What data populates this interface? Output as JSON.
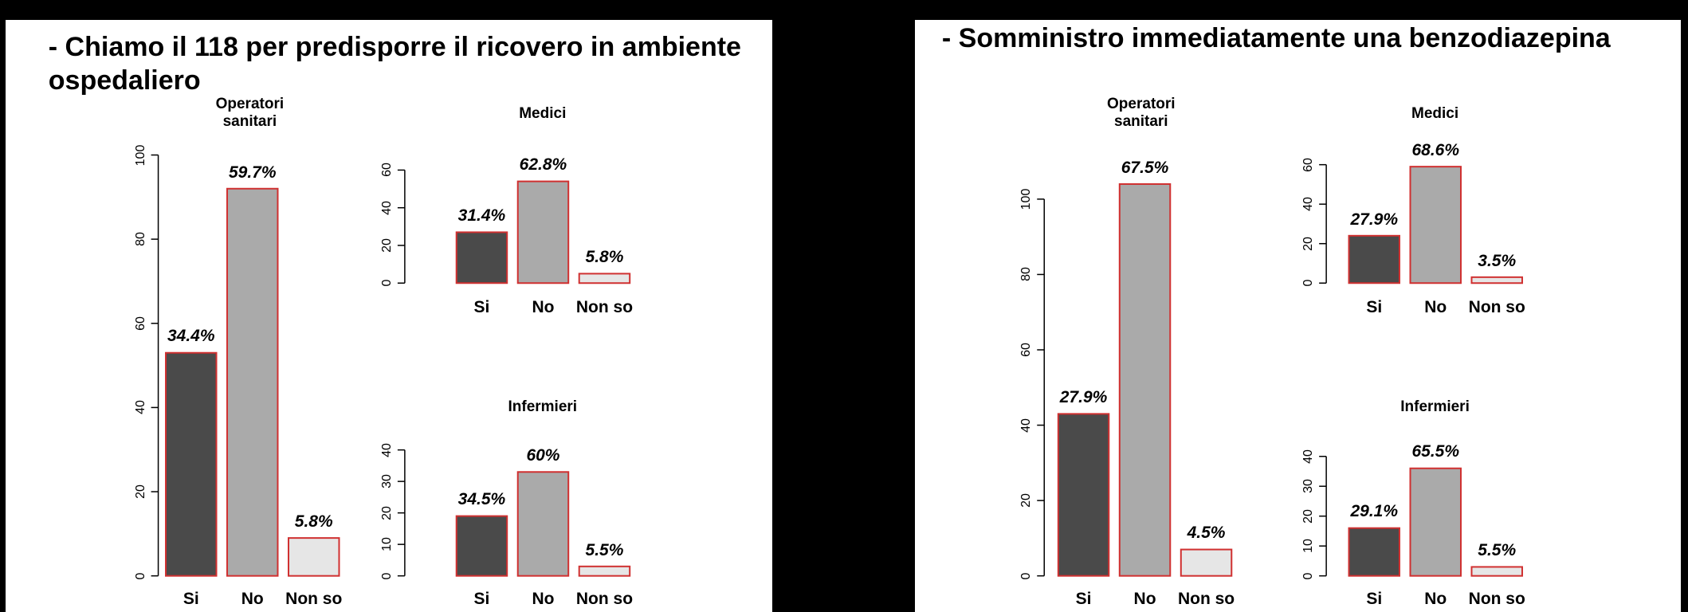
{
  "panels": [
    {
      "title": "- Chiamo il 118 per predisporre il ricovero in ambiente ospedaliero",
      "charts": [
        {
          "type": "bar",
          "title": "Operatori sanitari",
          "categories": [
            "Si",
            "No",
            "Non so"
          ],
          "values": [
            53,
            92,
            9
          ],
          "bar_texts": [
            "34.4%",
            "59.7%",
            "5.8%"
          ],
          "ylim": [
            0,
            100
          ],
          "yticks": [
            0,
            20,
            40,
            60,
            80,
            100
          ],
          "colors": [
            "#4a4a4a",
            "#aaaaaa",
            "#e6e6e6"
          ],
          "edge_color": "#d03030"
        },
        {
          "type": "bar",
          "title": "Medici",
          "categories": [
            "Si",
            "No",
            "Non so"
          ],
          "values": [
            27,
            54,
            5
          ],
          "bar_texts": [
            "31.4%",
            "62.8%",
            "5.8%"
          ],
          "ylim": [
            0,
            60
          ],
          "yticks": [
            0,
            20,
            40,
            60
          ],
          "colors": [
            "#4a4a4a",
            "#aaaaaa",
            "#e6e6e6"
          ],
          "edge_color": "#d03030"
        },
        {
          "type": "bar",
          "title": "Infermieri",
          "categories": [
            "Si",
            "No",
            "Non so"
          ],
          "values": [
            19,
            33,
            3
          ],
          "bar_texts": [
            "34.5%",
            "60%",
            "5.5%"
          ],
          "ylim": [
            0,
            40
          ],
          "yticks": [
            0,
            10,
            20,
            30,
            40
          ],
          "colors": [
            "#4a4a4a",
            "#aaaaaa",
            "#e6e6e6"
          ],
          "edge_color": "#d03030"
        }
      ]
    },
    {
      "title": "- Somministro immediatamente una benzodiazepina",
      "charts": [
        {
          "type": "bar",
          "title": "Operatori sanitari",
          "categories": [
            "Si",
            "No",
            "Non so"
          ],
          "values": [
            43,
            104,
            7
          ],
          "bar_texts": [
            "27.9%",
            "67.5%",
            "4.5%"
          ],
          "ylim": [
            0,
            100
          ],
          "yticks": [
            0,
            20,
            40,
            60,
            80,
            100
          ],
          "colors": [
            "#4a4a4a",
            "#aaaaaa",
            "#e6e6e6"
          ],
          "edge_color": "#d03030"
        },
        {
          "type": "bar",
          "title": "Medici",
          "categories": [
            "Si",
            "No",
            "Non so"
          ],
          "values": [
            24,
            59,
            3
          ],
          "bar_texts": [
            "27.9%",
            "68.6%",
            "3.5%"
          ],
          "ylim": [
            0,
            60
          ],
          "yticks": [
            0,
            20,
            40,
            60
          ],
          "colors": [
            "#4a4a4a",
            "#aaaaaa",
            "#e6e6e6"
          ],
          "edge_color": "#d03030"
        },
        {
          "type": "bar",
          "title": "Infermieri",
          "categories": [
            "Si",
            "No",
            "Non so"
          ],
          "values": [
            16,
            36,
            3
          ],
          "bar_texts": [
            "29.1%",
            "65.5%",
            "5.5%"
          ],
          "ylim": [
            0,
            40
          ],
          "yticks": [
            0,
            10,
            20,
            30,
            40
          ],
          "colors": [
            "#4a4a4a",
            "#aaaaaa",
            "#e6e6e6"
          ],
          "edge_color": "#d03030"
        }
      ]
    }
  ]
}
